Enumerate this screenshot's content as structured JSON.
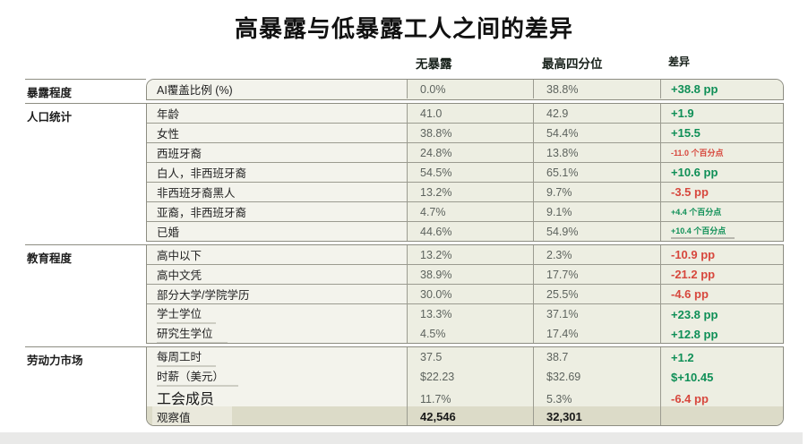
{
  "chart_data": {
    "type": "table",
    "title": "高暴露与低暴露工人之间的差异",
    "columns": [
      "无暴露",
      "最高四分位",
      "差异"
    ],
    "colors": {
      "positive_green": "#0f8f57",
      "negative_red": "#d7473d"
    },
    "groups": [
      {
        "category": "暴露程度",
        "rows": [
          {
            "label": "AI覆盖比例 (%)",
            "no_exposure": "0.0%",
            "top_quartile": "38.8%",
            "diff": "+38.8 pp",
            "diff_color": "green"
          }
        ]
      },
      {
        "category": "人口统计",
        "rows": [
          {
            "label": "年龄",
            "no_exposure": "41.0",
            "top_quartile": "42.9",
            "diff": "+1.9",
            "diff_color": "green"
          },
          {
            "label": "女性",
            "no_exposure": "38.8%",
            "top_quartile": "54.4%",
            "diff": "+15.5",
            "diff_color": "green"
          },
          {
            "label": "西班牙裔",
            "no_exposure": "24.8%",
            "top_quartile": "13.8%",
            "diff": "-11.0 个百分点",
            "diff_color": "red",
            "small_diff": true
          },
          {
            "label": "白人，非西班牙裔",
            "no_exposure": "54.5%",
            "top_quartile": "65.1%",
            "diff": "+10.6 pp",
            "diff_color": "green"
          },
          {
            "label": "非西班牙裔黑人",
            "no_exposure": "13.2%",
            "top_quartile": "9.7%",
            "diff": "-3.5 pp",
            "diff_color": "red"
          },
          {
            "label": "亚裔，非西班牙裔",
            "no_exposure": "4.7%",
            "top_quartile": "9.1%",
            "diff": "+4.4 个百分点",
            "diff_color": "green",
            "small_diff": true
          },
          {
            "label": "已婚",
            "no_exposure": "44.6%",
            "top_quartile": "54.9%",
            "diff": "+10.4 个百分点",
            "diff_color": "green",
            "small_diff": true,
            "diff_underline": true
          }
        ]
      },
      {
        "category": "教育程度",
        "rows": [
          {
            "label": "高中以下",
            "no_exposure": "13.2%",
            "top_quartile": "2.3%",
            "diff": "-10.9 pp",
            "diff_color": "red"
          },
          {
            "label": "高中文凭",
            "no_exposure": "38.9%",
            "top_quartile": "17.7%",
            "diff": "-21.2 pp",
            "diff_color": "red"
          },
          {
            "label": "部分大学/学院学历",
            "no_exposure": "30.0%",
            "top_quartile": "25.5%",
            "diff": "-4.6 pp",
            "diff_color": "red"
          },
          {
            "label": "学士学位",
            "no_exposure": "13.3%",
            "top_quartile": "37.1%",
            "diff": "+23.8 pp",
            "diff_color": "green",
            "label_underline": true
          },
          {
            "label": "研究生学位",
            "no_exposure": "4.5%",
            "top_quartile": "17.4%",
            "diff": "+12.8 pp",
            "diff_color": "green",
            "label_underline": true
          }
        ]
      },
      {
        "category": "劳动力市场",
        "rows": [
          {
            "label": "每周工时",
            "no_exposure": "37.5",
            "top_quartile": "38.7",
            "diff": "+1.2",
            "diff_color": "green",
            "label_underline": true
          },
          {
            "label": "时薪（美元）",
            "no_exposure": "$22.23",
            "top_quartile": "$32.69",
            "diff": "$+10.45",
            "diff_color": "green",
            "label_underline": true
          },
          {
            "label": "工会成员",
            "no_exposure": "11.7%",
            "top_quartile": "5.3%",
            "diff": "-6.4 pp",
            "diff_color": "red",
            "label_large": true,
            "label_underline": true
          },
          {
            "label": "观察值",
            "no_exposure": "42,546",
            "top_quartile": "32,301",
            "diff": "",
            "diff_color": null,
            "observations_row": true
          }
        ]
      }
    ]
  }
}
